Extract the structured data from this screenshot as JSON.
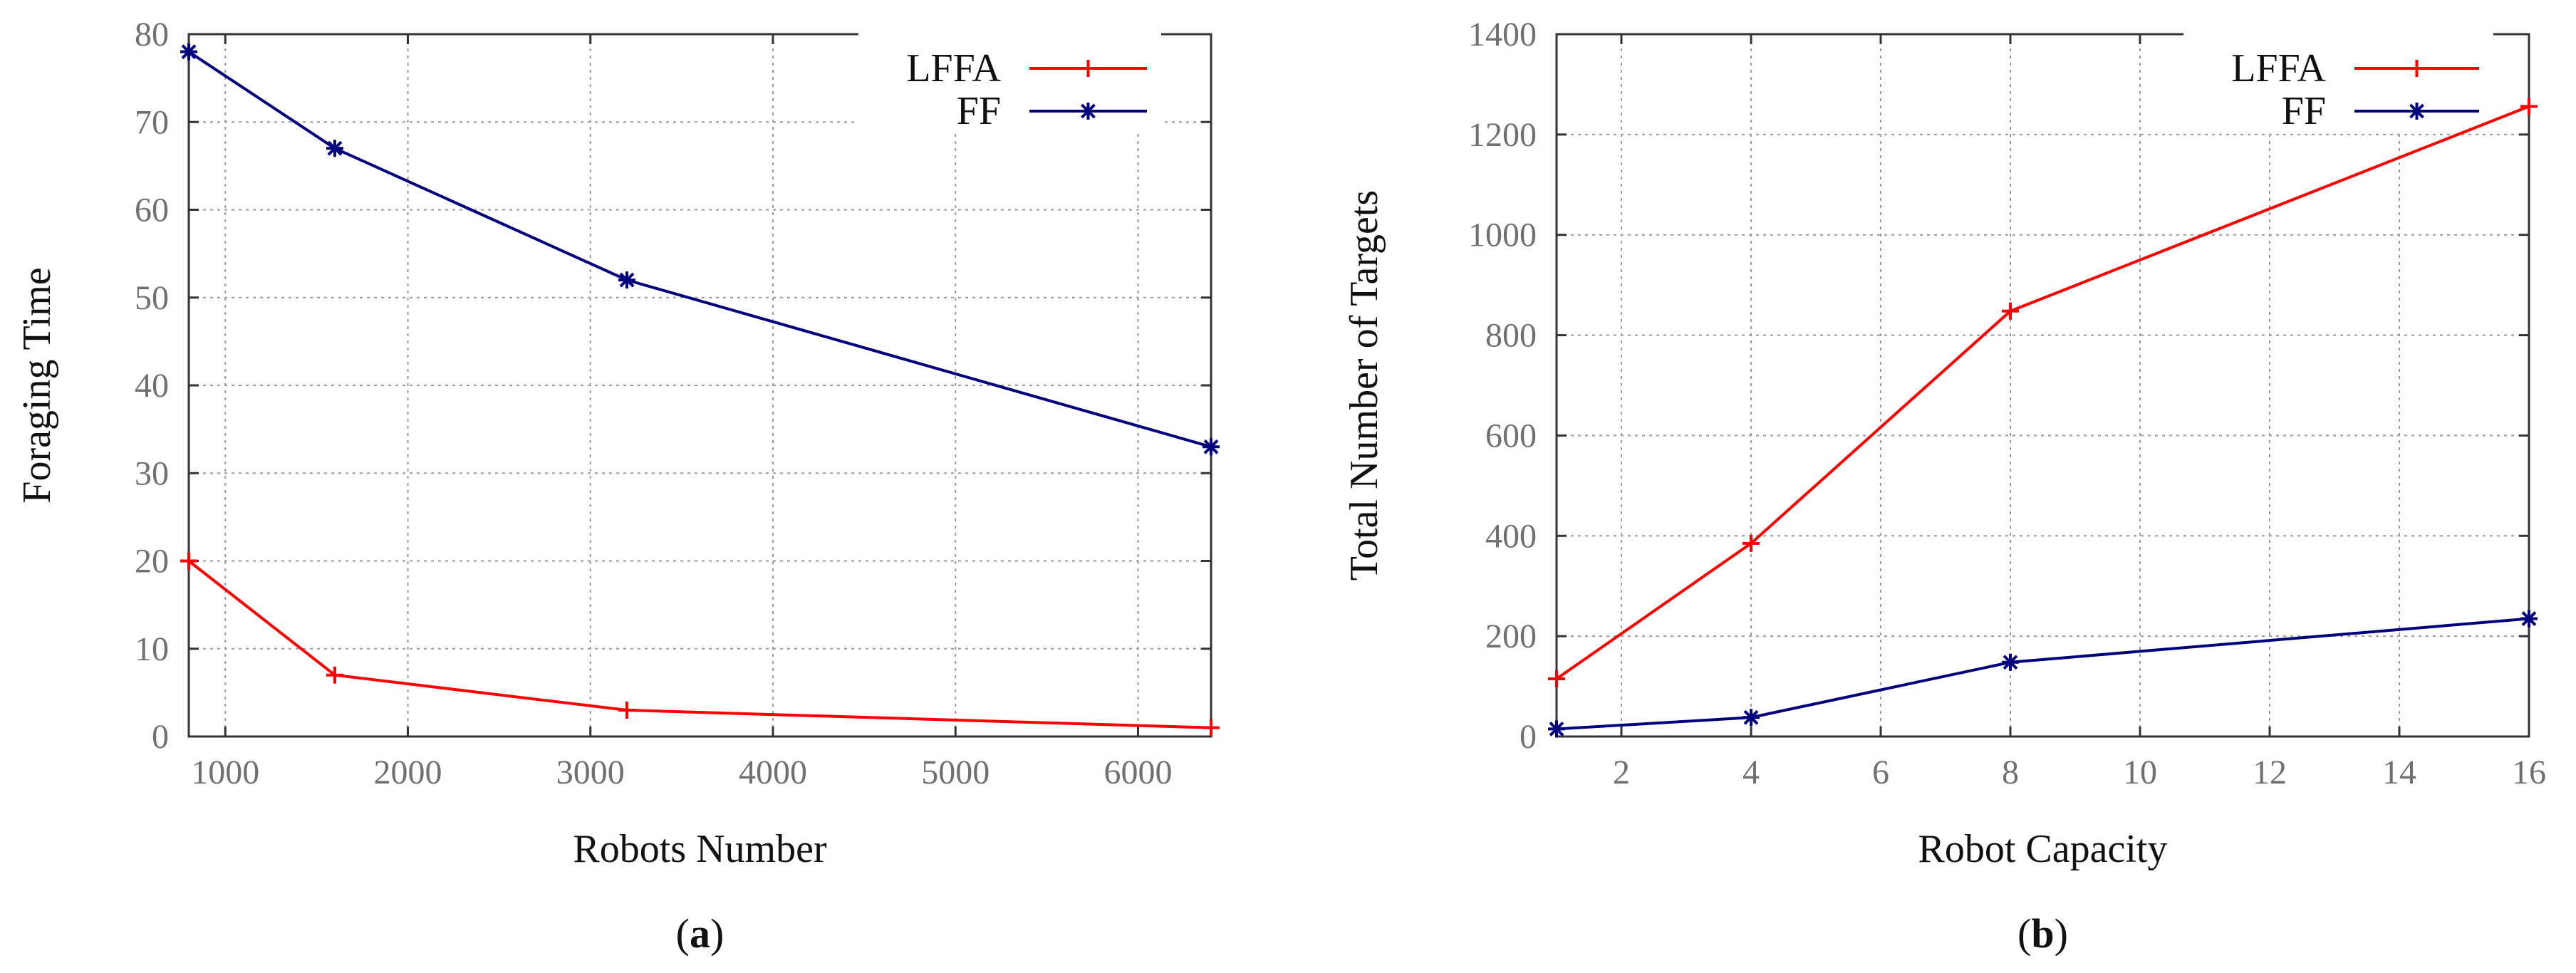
{
  "chart_data": [
    {
      "type": "line",
      "panel_label": "(a)",
      "panel_letter": "a",
      "title": "",
      "xlabel": "Robots Number",
      "ylabel": "Foraging Time",
      "xlim": [
        800,
        6400
      ],
      "ylim": [
        0,
        80
      ],
      "x_ticks": [
        1000,
        2000,
        3000,
        4000,
        5000,
        6000
      ],
      "x_tick_labels": [
        "1000",
        "2000",
        "3000",
        "4000",
        "5000",
        "6000"
      ],
      "y_ticks": [
        0,
        10,
        20,
        30,
        40,
        50,
        60,
        70,
        80
      ],
      "y_tick_labels": [
        "0",
        "10",
        "20",
        "30",
        "40",
        "50",
        "60",
        "70",
        "80"
      ],
      "grid": true,
      "legend_position": "top-right",
      "series": [
        {
          "name": "LFFA",
          "color": "#ff0000",
          "marker": "plus",
          "x": [
            800,
            1600,
            3200,
            6400
          ],
          "y": [
            20,
            7,
            3,
            1
          ]
        },
        {
          "name": "FF",
          "color": "#00007f",
          "marker": "star",
          "x": [
            800,
            1600,
            3200,
            6400
          ],
          "y": [
            78,
            67,
            52,
            33
          ]
        }
      ]
    },
    {
      "type": "line",
      "panel_label": "(b)",
      "panel_letter": "b",
      "title": "",
      "xlabel": "Robot Capacity",
      "ylabel": "Total Number of Targets",
      "xlim": [
        1,
        16
      ],
      "ylim": [
        0,
        1400
      ],
      "x_ticks": [
        2,
        4,
        6,
        8,
        10,
        12,
        14,
        16
      ],
      "x_tick_labels": [
        "2",
        "4",
        "6",
        "8",
        "10",
        "12",
        "14",
        "16"
      ],
      "y_ticks": [
        0,
        200,
        400,
        600,
        800,
        1000,
        1200,
        1400
      ],
      "y_tick_labels": [
        "0",
        "200",
        "400",
        "600",
        "800",
        "1000",
        "1200",
        "1400"
      ],
      "grid": true,
      "legend_position": "top-right",
      "series": [
        {
          "name": "LFFA",
          "color": "#ff0000",
          "marker": "plus",
          "x": [
            1,
            4,
            8,
            16
          ],
          "y": [
            115,
            385,
            848,
            1256
          ]
        },
        {
          "name": "FF",
          "color": "#00007f",
          "marker": "star",
          "x": [
            1,
            4,
            8,
            16
          ],
          "y": [
            15,
            38,
            148,
            235
          ]
        }
      ]
    }
  ]
}
